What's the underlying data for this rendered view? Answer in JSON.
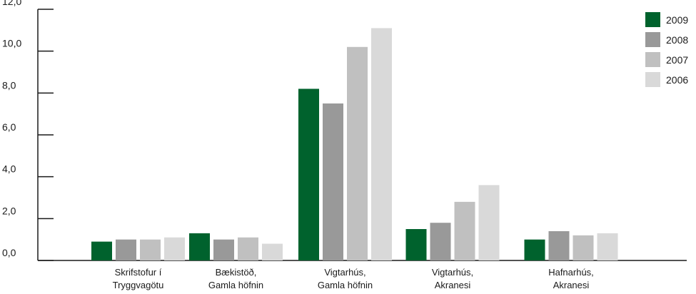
{
  "chart_data": {
    "type": "bar",
    "categories": [
      [
        "Skrifstofur í",
        "Tryggvagötu"
      ],
      [
        "Bækistöð,",
        "Gamla höfnin"
      ],
      [
        "Vigtarhús,",
        "Gamla höfnin"
      ],
      [
        "Vigtarhús,",
        "Akranesi"
      ],
      [
        "Hafnarhús,",
        "Akranesi"
      ]
    ],
    "series": [
      {
        "name": "2009",
        "color": "#00622d",
        "values": [
          0.9,
          1.3,
          8.2,
          1.5,
          1.0
        ]
      },
      {
        "name": "2008",
        "color": "#999999",
        "values": [
          1.0,
          1.0,
          7.5,
          1.8,
          1.4
        ]
      },
      {
        "name": "2007",
        "color": "#c0c0c0",
        "values": [
          1.0,
          1.1,
          10.2,
          2.8,
          1.2
        ]
      },
      {
        "name": "2006",
        "color": "#d9d9d9",
        "values": [
          1.1,
          0.8,
          11.1,
          3.6,
          1.3
        ]
      }
    ],
    "yticks": [
      "0,0",
      "2,0",
      "4,0",
      "6,0",
      "8,0",
      "10,0",
      "12,0"
    ],
    "ylim": [
      0,
      12
    ],
    "grid": false,
    "legend": "top-right",
    "title": "",
    "xlabel": "",
    "ylabel": ""
  }
}
